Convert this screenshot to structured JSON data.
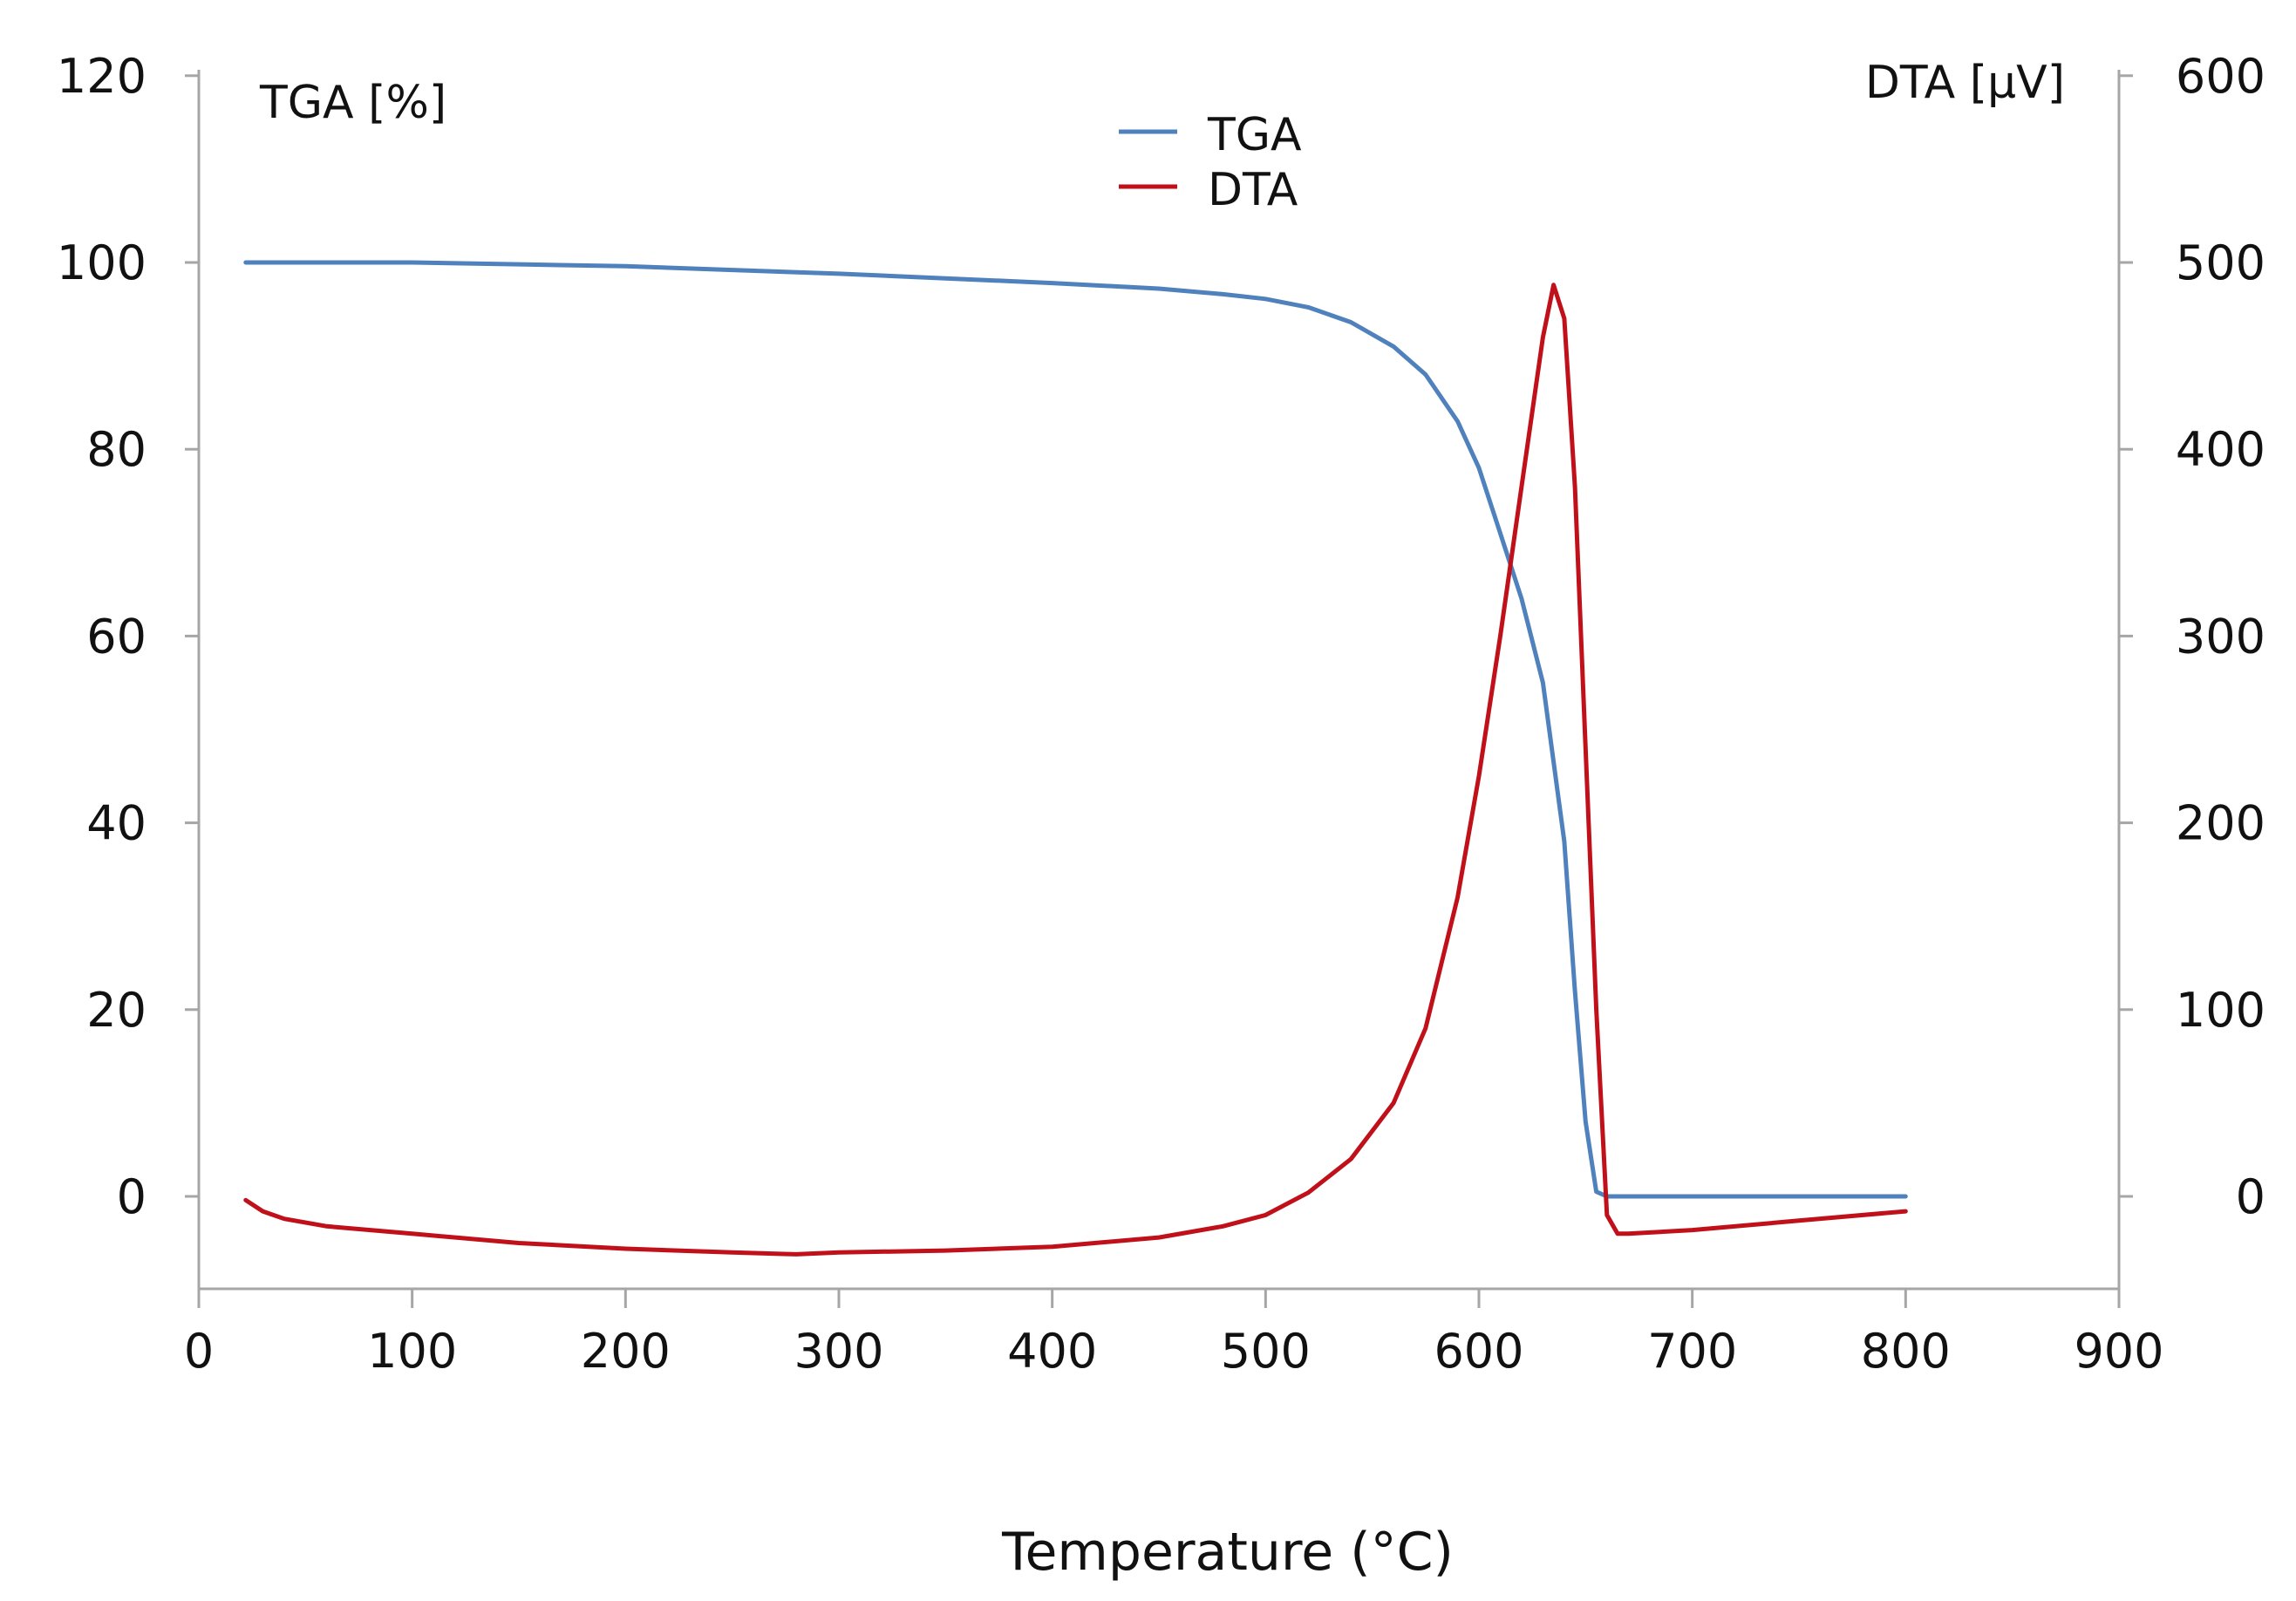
{
  "chart_data": {
    "type": "line",
    "xlabel": "Temperature (°C)",
    "ylabel_left": "TGA [%]",
    "ylabel_right": "DTA [μV]",
    "xlim": [
      0,
      900
    ],
    "ylim_left": [
      -10,
      120
    ],
    "ylim_right": [
      -50,
      600
    ],
    "x_ticks": [
      "0",
      "100",
      "200",
      "300",
      "400",
      "500",
      "600",
      "700",
      "800",
      "900"
    ],
    "y_left_ticks": [
      "0",
      "20",
      "40",
      "60",
      "80",
      "100",
      "120"
    ],
    "y_right_ticks": [
      "0",
      "100",
      "200",
      "300",
      "400",
      "500",
      "600"
    ],
    "grid": false,
    "legend_position": "top-center",
    "colors": {
      "TGA": "#4f81bd",
      "DTA": "#c0101a",
      "axis": "#a6a6a6"
    },
    "series": [
      {
        "name": "TGA",
        "axis": "left",
        "x": [
          22,
          100,
          150,
          200,
          250,
          300,
          350,
          400,
          450,
          480,
          500,
          520,
          540,
          560,
          575,
          590,
          600,
          610,
          620,
          630,
          640,
          645,
          650,
          655,
          660,
          700,
          750,
          800
        ],
        "y": [
          100,
          100,
          99.8,
          99.6,
          99.2,
          98.8,
          98.3,
          97.8,
          97.2,
          96.6,
          96.1,
          95.2,
          93.6,
          91,
          88,
          83,
          78,
          71,
          64,
          55,
          38,
          22,
          8,
          0.5,
          0,
          0,
          0,
          0
        ]
      },
      {
        "name": "DTA",
        "axis": "right",
        "x": [
          22,
          30,
          40,
          60,
          100,
          150,
          200,
          250,
          280,
          300,
          350,
          400,
          450,
          480,
          500,
          520,
          540,
          560,
          575,
          590,
          600,
          610,
          620,
          630,
          635,
          640,
          645,
          650,
          655,
          660,
          665,
          670,
          700,
          750,
          800
        ],
        "y": [
          -2,
          -8,
          -12,
          -16,
          -20,
          -25,
          -28,
          -30,
          -31,
          -30,
          -29,
          -27,
          -22,
          -16,
          -10,
          2,
          20,
          50,
          90,
          160,
          225,
          300,
          380,
          460,
          488,
          470,
          380,
          240,
          100,
          -10,
          -20,
          -20,
          -18,
          -13,
          -8
        ]
      }
    ]
  }
}
